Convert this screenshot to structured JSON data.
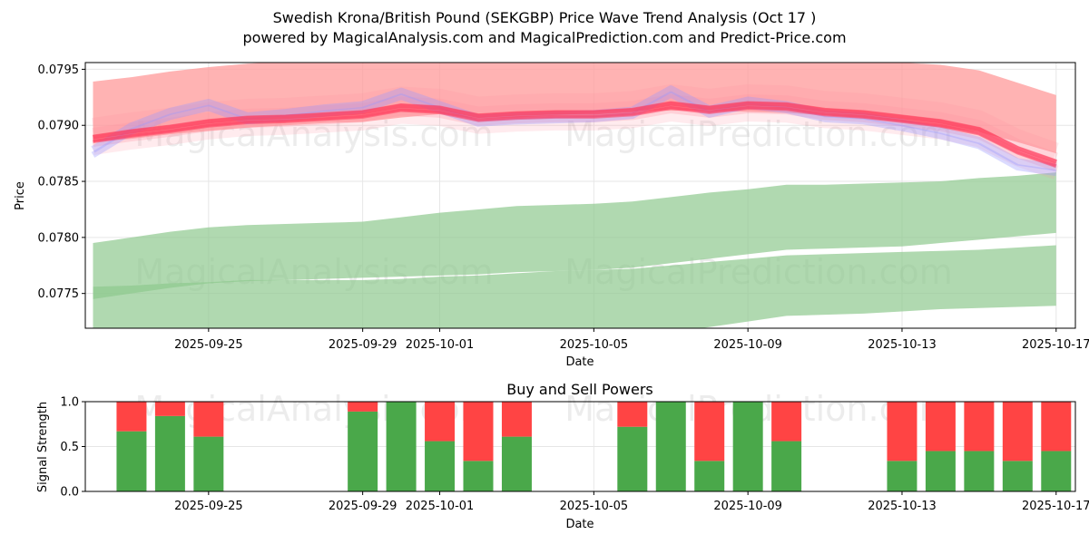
{
  "chart_data": [
    {
      "type": "area",
      "title": "Swedish Krona/British Pound (SEKGBP) Price Wave Trend Analysis (Oct 17 )",
      "subtitle": "powered by MagicalAnalysis.com and MagicalPrediction.com and Predict-Price.com",
      "xlabel": "Date",
      "ylabel": "Price",
      "xlim": [
        "2025-09-21.8",
        "2025-10-17.5"
      ],
      "ylim": [
        0.07719,
        0.07956
      ],
      "x_ticks": [
        "2025-09-25",
        "2025-09-29",
        "2025-10-01",
        "2025-10-05",
        "2025-10-09",
        "2025-10-13",
        "2025-10-17"
      ],
      "y_ticks": [
        "0.0775",
        "0.0780",
        "0.0785",
        "0.0790",
        "0.0795"
      ],
      "grid": true,
      "watermarks": [
        "MagicalAnalysis.com",
        "MagicalPrediction.com"
      ],
      "x": [
        "2025-09-22",
        "2025-09-23",
        "2025-09-24",
        "2025-09-25",
        "2025-09-26",
        "2025-09-27",
        "2025-09-28",
        "2025-09-29",
        "2025-09-30",
        "2025-10-01",
        "2025-10-02",
        "2025-10-03",
        "2025-10-04",
        "2025-10-05",
        "2025-10-06",
        "2025-10-07",
        "2025-10-08",
        "2025-10-09",
        "2025-10-10",
        "2025-10-11",
        "2025-10-12",
        "2025-10-13",
        "2025-10-14",
        "2025-10-15",
        "2025-10-16",
        "2025-10-17"
      ],
      "series": [
        {
          "name": "red upper wave band",
          "color": "#ff9999",
          "upper": [
            0.07939,
            0.07943,
            0.07948,
            0.07952,
            0.07955,
            0.07957,
            0.07958,
            0.07958,
            0.07958,
            0.07958,
            0.07958,
            0.07958,
            0.07958,
            0.07958,
            0.07958,
            0.07958,
            0.07958,
            0.07958,
            0.07958,
            0.07958,
            0.07958,
            0.07956,
            0.07954,
            0.07949,
            0.07938,
            0.07927
          ],
          "lower": [
            0.07885,
            0.07888,
            0.07892,
            0.07895,
            0.07898,
            0.079,
            0.07902,
            0.07903,
            0.07907,
            0.0791,
            0.07906,
            0.07907,
            0.07909,
            0.07911,
            0.07913,
            0.07913,
            0.07913,
            0.07912,
            0.07911,
            0.07909,
            0.07906,
            0.07903,
            0.07898,
            0.07894,
            0.07885,
            0.07875
          ]
        },
        {
          "name": "red trend lines",
          "color": "#ff3355",
          "values": [
            0.07888,
            0.07893,
            0.07897,
            0.07902,
            0.07905,
            0.07906,
            0.07908,
            0.0791,
            0.07916,
            0.07914,
            0.07907,
            0.07909,
            0.0791,
            0.0791,
            0.07912,
            0.07918,
            0.07914,
            0.07918,
            0.07917,
            0.07912,
            0.0791,
            0.07906,
            0.07902,
            0.07895,
            0.07878,
            0.07866
          ]
        },
        {
          "name": "blue trend lines",
          "color": "#9999ff",
          "values": [
            0.07876,
            0.07897,
            0.0791,
            0.07918,
            0.07906,
            0.07909,
            0.07913,
            0.07916,
            0.07928,
            0.07916,
            0.07904,
            0.07906,
            0.07907,
            0.07908,
            0.07911,
            0.0793,
            0.07912,
            0.0792,
            0.07916,
            0.07908,
            0.07906,
            0.079,
            0.07893,
            0.07884,
            0.07865,
            0.0786
          ]
        },
        {
          "name": "green upper wave band",
          "color": "#8fc98f",
          "upper": [
            0.07795,
            0.078,
            0.07805,
            0.07809,
            0.07811,
            0.07812,
            0.07813,
            0.07814,
            0.07818,
            0.07822,
            0.07825,
            0.07828,
            0.07829,
            0.0783,
            0.07832,
            0.07836,
            0.0784,
            0.07843,
            0.07847,
            0.07847,
            0.07848,
            0.07849,
            0.0785,
            0.07853,
            0.07855,
            0.07858
          ],
          "lower": [
            0.07745,
            0.0775,
            0.07755,
            0.07759,
            0.07761,
            0.07762,
            0.07763,
            0.07764,
            0.07765,
            0.07766,
            0.07767,
            0.07769,
            0.0777,
            0.07771,
            0.07773,
            0.07777,
            0.07781,
            0.07785,
            0.07789,
            0.0779,
            0.07791,
            0.07792,
            0.07795,
            0.07798,
            0.07801,
            0.07804
          ]
        },
        {
          "name": "green lower wave band",
          "color": "#8fc98f",
          "upper": [
            0.07756,
            0.07757,
            0.07759,
            0.0776,
            0.07762,
            0.07762,
            0.07762,
            0.07762,
            0.07763,
            0.07765,
            0.07766,
            0.07768,
            0.0777,
            0.07771,
            0.07772,
            0.07775,
            0.07778,
            0.07781,
            0.07784,
            0.07785,
            0.07786,
            0.07787,
            0.07788,
            0.07789,
            0.07791,
            0.07793
          ],
          "lower": [
            0.077,
            0.077,
            0.077,
            0.077,
            0.077,
            0.077,
            0.077,
            0.077,
            0.077,
            0.077,
            0.077,
            0.077,
            0.077,
            0.077,
            0.0771,
            0.07715,
            0.0772,
            0.07725,
            0.0773,
            0.07731,
            0.07732,
            0.07734,
            0.07736,
            0.07737,
            0.07738,
            0.07739
          ]
        }
      ]
    },
    {
      "type": "bar",
      "title": "Buy and Sell Powers",
      "xlabel": "Date",
      "ylabel": "Signal Strength",
      "ylim": [
        0,
        1
      ],
      "y_ticks": [
        "0.0",
        "0.5",
        "1.0"
      ],
      "x_ticks": [
        "2025-09-25",
        "2025-09-29",
        "2025-10-01",
        "2025-10-05",
        "2025-10-09",
        "2025-10-13",
        "2025-10-17"
      ],
      "categories": [
        "2025-09-23",
        "2025-09-24",
        "2025-09-25",
        "2025-09-29",
        "2025-09-30",
        "2025-10-01",
        "2025-10-02",
        "2025-10-03",
        "2025-10-06",
        "2025-10-07",
        "2025-10-08",
        "2025-10-09",
        "2025-10-10",
        "2025-10-13",
        "2025-10-14",
        "2025-10-15",
        "2025-10-16",
        "2025-10-17"
      ],
      "series": [
        {
          "name": "Buy",
          "color": "#4aa84a",
          "values": [
            0.67,
            0.84,
            0.61,
            0.89,
            1.0,
            0.56,
            0.34,
            0.61,
            0.72,
            1.0,
            0.34,
            1.0,
            0.56,
            0.34,
            0.45,
            0.45,
            0.34,
            0.45
          ]
        },
        {
          "name": "Sell",
          "color": "#ff4444",
          "values": [
            0.33,
            0.16,
            0.39,
            0.11,
            0.0,
            0.44,
            0.66,
            0.39,
            0.28,
            0.0,
            0.66,
            0.0,
            0.44,
            0.66,
            0.55,
            0.55,
            0.66,
            0.55
          ]
        }
      ]
    }
  ]
}
